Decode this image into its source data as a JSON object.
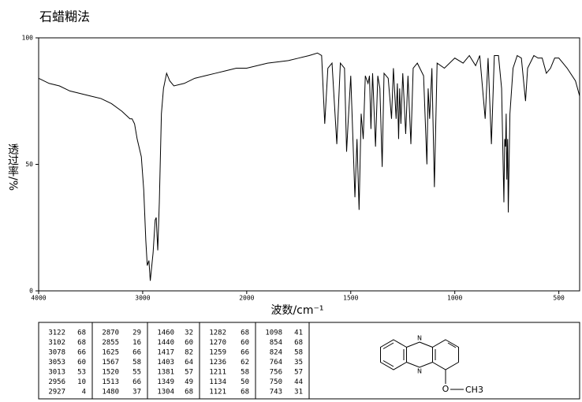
{
  "chart_data": {
    "type": "line",
    "title": "石蜡糊法",
    "x_label": "波数/cm⁻¹",
    "y_label": "透过率/%",
    "xlim": [
      4000,
      400
    ],
    "xticks": [
      4000,
      3000,
      2000,
      1500,
      1000,
      500
    ],
    "ylim": [
      0,
      100
    ],
    "yticks": [
      0,
      50,
      100
    ],
    "color": "#000000",
    "x": [
      4000,
      3900,
      3800,
      3700,
      3600,
      3500,
      3400,
      3300,
      3200,
      3122,
      3102,
      3078,
      3053,
      3013,
      2990,
      2970,
      2956,
      2940,
      2927,
      2900,
      2880,
      2870,
      2855,
      2840,
      2820,
      2800,
      2770,
      2740,
      2700,
      2600,
      2500,
      2400,
      2300,
      2200,
      2100,
      2000,
      1900,
      1800,
      1750,
      1700,
      1660,
      1640,
      1625,
      1610,
      1590,
      1567,
      1550,
      1530,
      1520,
      1513,
      1500,
      1480,
      1470,
      1460,
      1450,
      1440,
      1430,
      1417,
      1410,
      1403,
      1395,
      1381,
      1370,
      1360,
      1349,
      1340,
      1320,
      1304,
      1295,
      1282,
      1276,
      1270,
      1265,
      1259,
      1250,
      1236,
      1225,
      1211,
      1200,
      1180,
      1150,
      1134,
      1128,
      1121,
      1110,
      1098,
      1085,
      1050,
      1000,
      960,
      930,
      900,
      880,
      854,
      840,
      824,
      810,
      790,
      775,
      764,
      760,
      756,
      753,
      750,
      746,
      743,
      735,
      720,
      700,
      680,
      660,
      650,
      620,
      600,
      580,
      560,
      540,
      520,
      500,
      480,
      460,
      420,
      400
    ],
    "values": [
      84,
      82,
      81,
      79,
      78,
      77,
      76,
      74,
      71,
      68,
      68,
      66,
      60,
      53,
      40,
      20,
      10,
      12,
      4,
      15,
      28,
      29,
      16,
      35,
      70,
      80,
      86,
      83,
      81,
      82,
      84,
      85,
      86,
      87,
      88,
      88,
      90,
      91,
      92,
      93,
      94,
      93,
      66,
      88,
      90,
      58,
      90,
      88,
      55,
      66,
      85,
      37,
      60,
      32,
      70,
      60,
      85,
      82,
      85,
      64,
      86,
      57,
      85,
      80,
      49,
      86,
      84,
      68,
      88,
      68,
      82,
      60,
      80,
      66,
      86,
      62,
      85,
      58,
      88,
      90,
      85,
      50,
      80,
      68,
      88,
      41,
      90,
      88,
      92,
      90,
      93,
      89,
      93,
      68,
      92,
      58,
      93,
      93,
      80,
      35,
      60,
      57,
      70,
      44,
      60,
      31,
      70,
      88,
      93,
      92,
      75,
      88,
      93,
      92,
      92,
      86,
      88,
      92,
      92,
      90,
      88,
      83,
      77
    ]
  },
  "peak_table": {
    "columns": [
      [
        [
          3122,
          68
        ],
        [
          3102,
          68
        ],
        [
          3078,
          66
        ],
        [
          3053,
          60
        ],
        [
          3013,
          53
        ],
        [
          2956,
          10
        ],
        [
          2927,
          4
        ]
      ],
      [
        [
          2870,
          29
        ],
        [
          2855,
          16
        ],
        [
          1625,
          66
        ],
        [
          1567,
          58
        ],
        [
          1520,
          55
        ],
        [
          1513,
          66
        ],
        [
          1480,
          37
        ]
      ],
      [
        [
          1460,
          32
        ],
        [
          1440,
          60
        ],
        [
          1417,
          82
        ],
        [
          1403,
          64
        ],
        [
          1381,
          57
        ],
        [
          1349,
          49
        ],
        [
          1304,
          68
        ]
      ],
      [
        [
          1282,
          68
        ],
        [
          1270,
          60
        ],
        [
          1259,
          66
        ],
        [
          1236,
          62
        ],
        [
          1211,
          58
        ],
        [
          1134,
          50
        ],
        [
          1121,
          68
        ]
      ],
      [
        [
          1098,
          41
        ],
        [
          854,
          68
        ],
        [
          824,
          58
        ],
        [
          764,
          35
        ],
        [
          756,
          57
        ],
        [
          750,
          44
        ],
        [
          743,
          31
        ]
      ]
    ]
  },
  "structure": {
    "atoms": [
      "N",
      "N",
      "O",
      "CH3"
    ]
  }
}
